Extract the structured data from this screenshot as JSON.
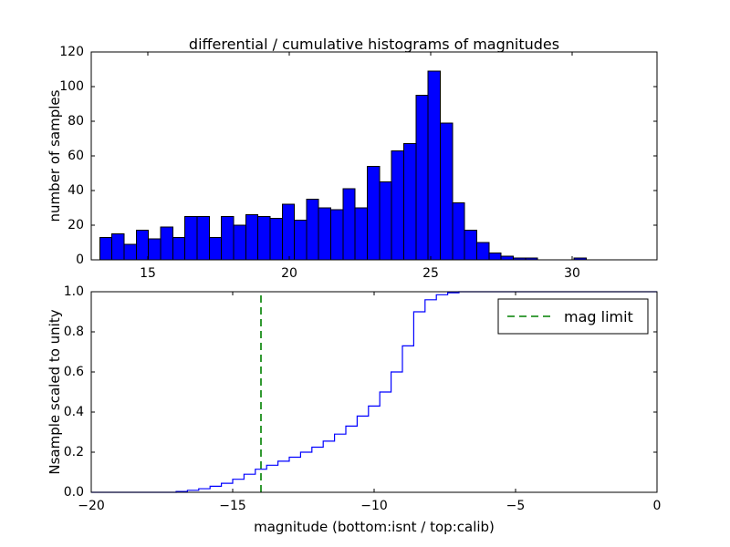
{
  "chart_data": [
    {
      "type": "bar",
      "title": "differential / cumulative histograms of magnitudes",
      "ylabel": "number of samples",
      "xlim": [
        13,
        33
      ],
      "ylim": [
        0,
        120
      ],
      "xtick_values": [
        15,
        20,
        25,
        30
      ],
      "xtick_labels": [
        "15",
        "20",
        "25",
        "30"
      ],
      "ytick_values": [
        0,
        20,
        40,
        60,
        80,
        100,
        120
      ],
      "ytick_labels": [
        "0",
        "20",
        "40",
        "60",
        "80",
        "100",
        "120"
      ],
      "bar_color": "#0000ff",
      "bar_edge_color": "#000000",
      "bin_start": 13.3,
      "bin_width": 0.43,
      "counts": [
        13,
        15,
        9,
        17,
        12,
        19,
        13,
        25,
        25,
        13,
        25,
        20,
        26,
        25,
        24,
        32,
        23,
        35,
        30,
        29,
        41,
        30,
        54,
        45,
        63,
        67,
        95,
        109,
        79,
        33,
        17,
        10,
        4,
        2,
        1,
        1,
        0,
        0,
        0,
        1
      ],
      "grid": false
    },
    {
      "type": "line",
      "subtype": "cumulative-step",
      "ylabel": "Nsample scaled to unity",
      "xlabel": "magnitude (bottom:isnt / top:calib)",
      "xlim": [
        -20,
        0
      ],
      "ylim": [
        0.0,
        1.0
      ],
      "xtick_values": [
        -20,
        -15,
        -10,
        -5,
        0
      ],
      "xtick_labels": [
        "−20",
        "−15",
        "−10",
        "−5",
        "0"
      ],
      "ytick_values": [
        0.0,
        0.2,
        0.4,
        0.6,
        0.8,
        1.0
      ],
      "ytick_labels": [
        "0.0",
        "0.2",
        "0.4",
        "0.6",
        "0.8",
        "1.0"
      ],
      "line_color": "#0000ff",
      "step_edges": [
        -17.0,
        -16.6,
        -16.2,
        -15.8,
        -15.4,
        -15.0,
        -14.6,
        -14.2,
        -13.8,
        -13.4,
        -13.0,
        -12.6,
        -12.2,
        -11.8,
        -11.4,
        -11.0,
        -10.6,
        -10.2,
        -9.8,
        -9.4,
        -9.0,
        -8.6,
        -8.2,
        -7.8,
        -7.4,
        -7.0,
        -6.6
      ],
      "step_values": [
        0.004,
        0.01,
        0.018,
        0.03,
        0.045,
        0.065,
        0.09,
        0.115,
        0.135,
        0.155,
        0.175,
        0.2,
        0.225,
        0.255,
        0.29,
        0.33,
        0.38,
        0.43,
        0.5,
        0.6,
        0.73,
        0.9,
        0.96,
        0.985,
        0.995,
        1.0
      ],
      "vline": {
        "x": -14,
        "color": "#008000",
        "style": "dashed"
      },
      "legend": {
        "label": "mag limit",
        "position": "upper right",
        "sample_color": "#008000",
        "sample_style": "dashed"
      },
      "grid": false
    }
  ]
}
